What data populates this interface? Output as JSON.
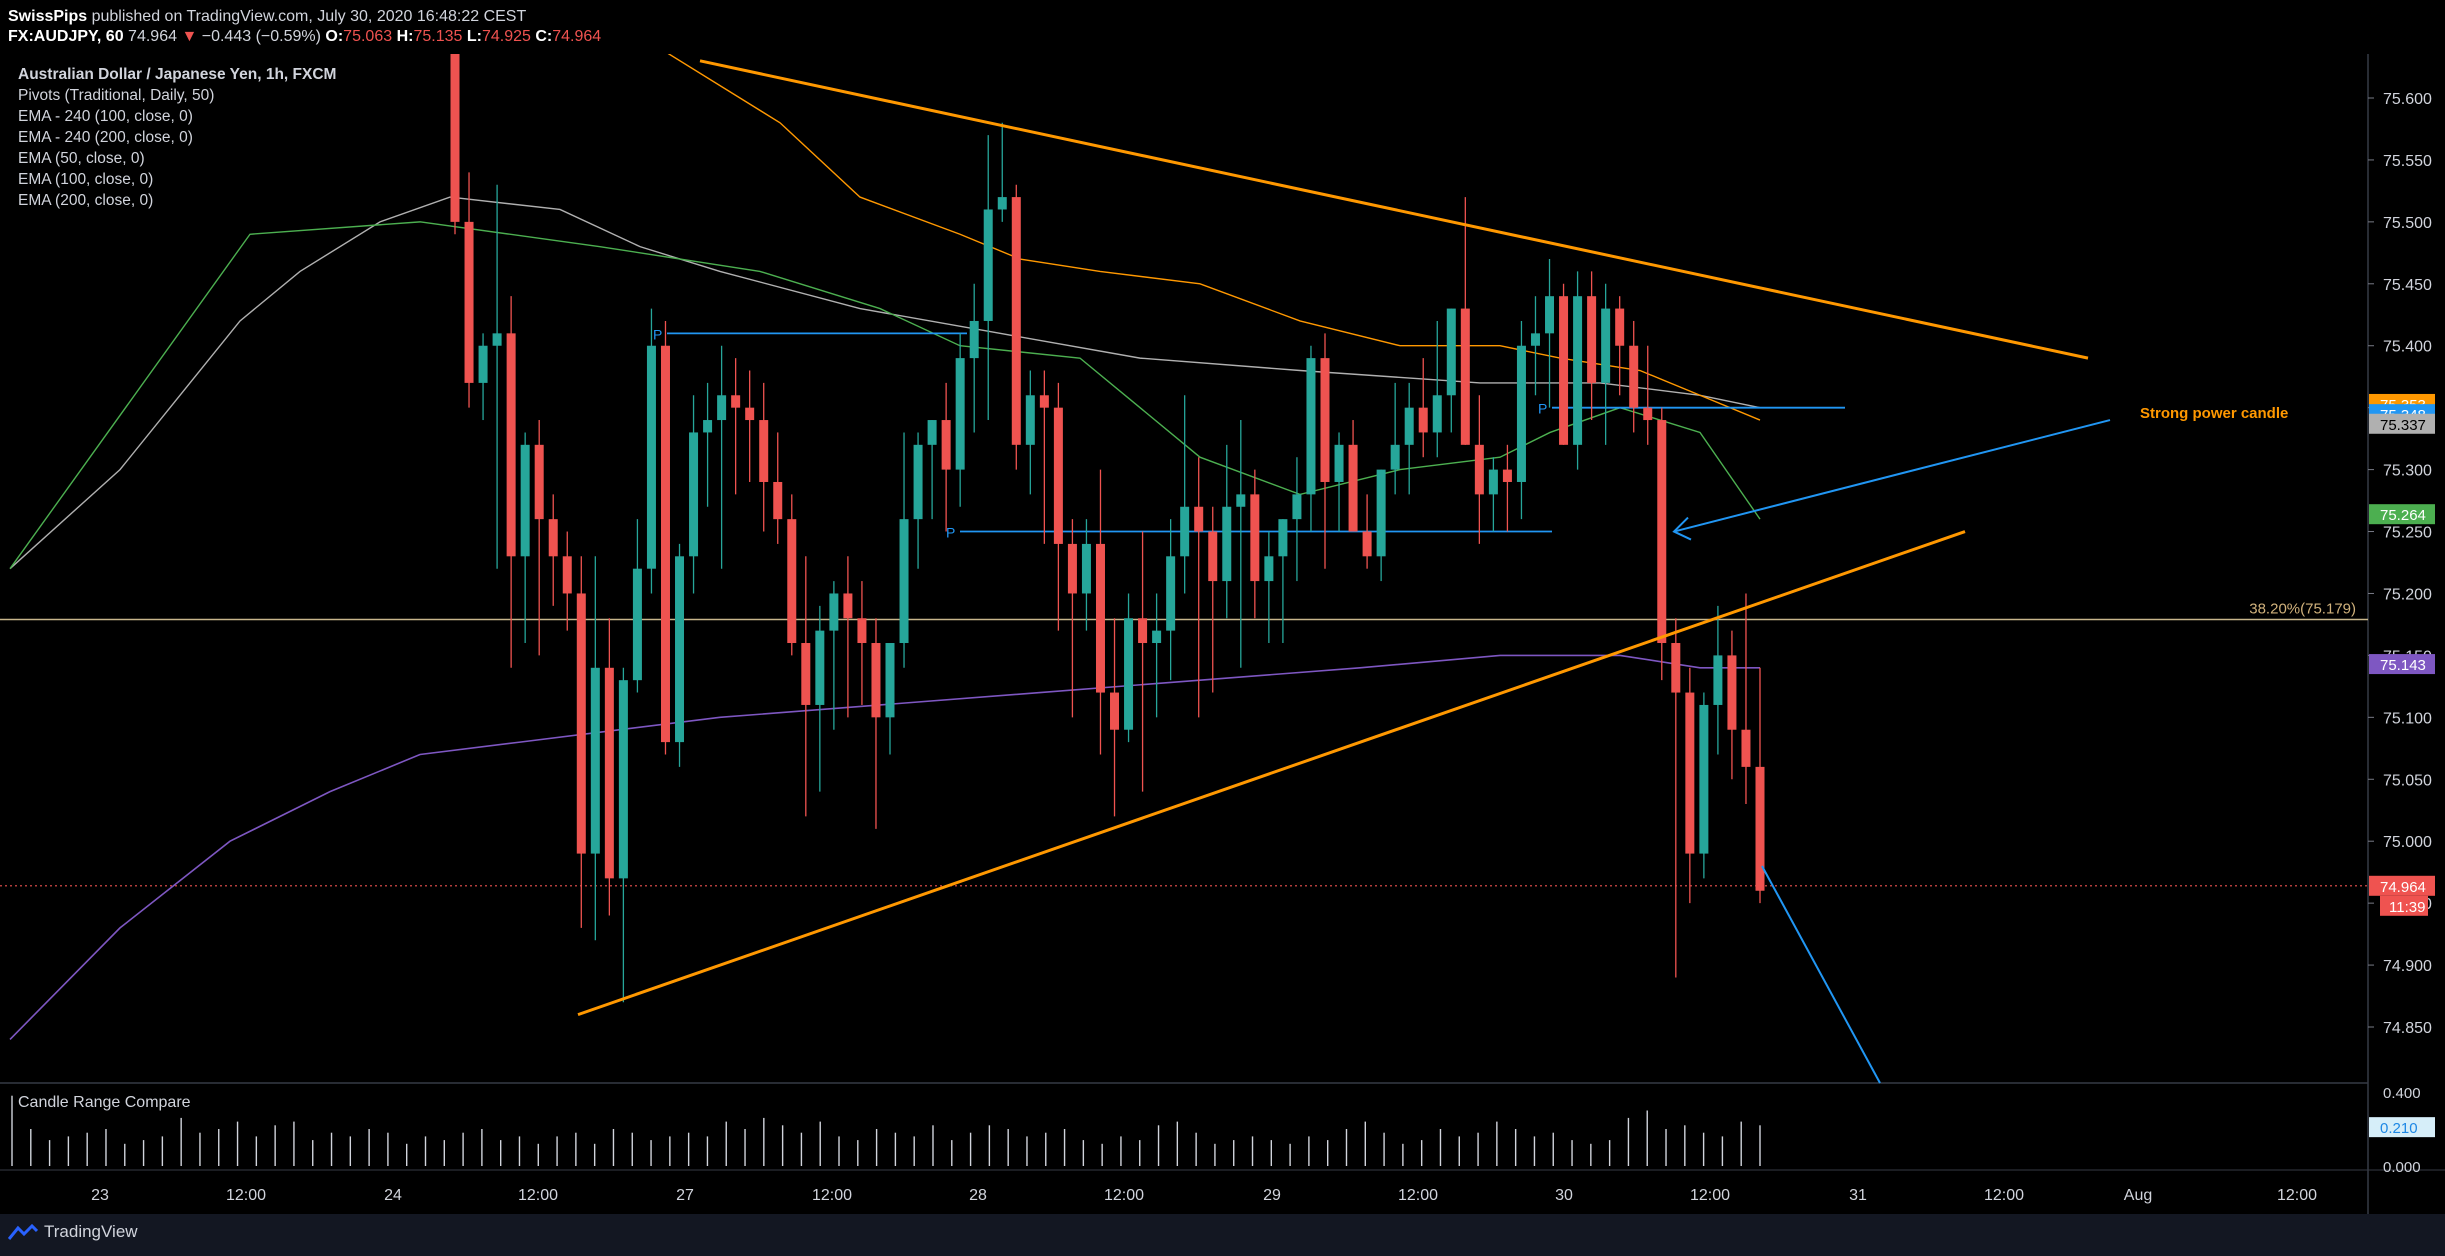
{
  "header": {
    "publisher": "SwissPips",
    "published_text": " published on TradingView.com, July 30, 2020 16:48:22 CEST",
    "symbol": "FX:AUDJPY, 60",
    "last": "74.964",
    "change": "−0.443 (−0.59%)",
    "o_label": "O:",
    "o_value": "75.063",
    "h_label": "H:",
    "h_value": "75.135",
    "l_label": "L:",
    "l_value": "74.925",
    "c_label": "C:",
    "c_value": "74.964"
  },
  "indicators": [
    "Australian Dollar / Japanese Yen, 1h, FXCM",
    "Pivots (Traditional, Daily, 50)",
    "EMA - 240 (100, close, 0)",
    "EMA - 240 (200, close, 0)",
    "EMA (50, close, 0)",
    "EMA (100, close, 0)",
    "EMA (200, close, 0)"
  ],
  "footer": {
    "brand": "TradingView"
  },
  "colors": {
    "up": "#26a69a",
    "down": "#ef5350",
    "trend": "#ff9800",
    "blue": "#2196f3",
    "ema50": "#4caf50",
    "ema100": "#ff9800",
    "ema200_240": "#7e57c2",
    "ema100_240": "#b0b0b0"
  },
  "chart_data": {
    "type": "candlestick",
    "ylim": [
      74.8,
      75.63
    ],
    "y_ticks": [
      "75.600",
      "75.550",
      "75.500",
      "75.450",
      "75.400",
      "75.350",
      "75.300",
      "75.250",
      "75.200",
      "75.150",
      "75.100",
      "75.050",
      "75.000",
      "74.950",
      "74.900",
      "74.850"
    ],
    "x_ticks": [
      "23",
      "12:00",
      "24",
      "12:00",
      "27",
      "12:00",
      "28",
      "12:00",
      "29",
      "12:00",
      "30",
      "12:00",
      "31",
      "12:00",
      "Aug",
      "12:00"
    ],
    "price_labels": [
      {
        "text": "75.353",
        "value": 75.353,
        "color": "#ff9800"
      },
      {
        "text": "75.348",
        "value": 75.348,
        "color": "#2196f3"
      },
      {
        "text": "75.337",
        "value": 75.337,
        "color": "#b0b0b0"
      },
      {
        "text": "75.264",
        "value": 75.264,
        "color": "#4caf50"
      },
      {
        "text": "75.143",
        "value": 75.143,
        "color": "#7e57c2"
      },
      {
        "text": "74.964",
        "value": 74.964,
        "color": "#ef5350"
      }
    ],
    "countdown": "11:39",
    "fib_label": "38.20%(75.179)",
    "fib_value": 75.179,
    "annotation": "Strong power candle",
    "pivot_label": "P",
    "candles": [
      [
        75.72,
        75.74,
        75.49,
        75.5
      ],
      [
        75.5,
        75.54,
        75.35,
        75.37
      ],
      [
        75.37,
        75.41,
        75.34,
        75.4
      ],
      [
        75.4,
        75.53,
        75.22,
        75.41
      ],
      [
        75.41,
        75.44,
        75.14,
        75.23
      ],
      [
        75.23,
        75.33,
        75.16,
        75.32
      ],
      [
        75.32,
        75.34,
        75.15,
        75.26
      ],
      [
        75.26,
        75.28,
        75.19,
        75.23
      ],
      [
        75.23,
        75.25,
        75.17,
        75.2
      ],
      [
        75.2,
        75.23,
        74.93,
        74.99
      ],
      [
        74.99,
        75.23,
        74.92,
        75.14
      ],
      [
        75.14,
        75.18,
        74.94,
        74.97
      ],
      [
        74.97,
        75.14,
        74.87,
        75.13
      ],
      [
        75.13,
        75.26,
        75.12,
        75.22
      ],
      [
        75.22,
        75.43,
        75.2,
        75.4
      ],
      [
        75.4,
        75.42,
        75.07,
        75.08
      ],
      [
        75.08,
        75.24,
        75.06,
        75.23
      ],
      [
        75.23,
        75.36,
        75.2,
        75.33
      ],
      [
        75.33,
        75.37,
        75.27,
        75.34
      ],
      [
        75.34,
        75.4,
        75.22,
        75.36
      ],
      [
        75.36,
        75.39,
        75.28,
        75.35
      ],
      [
        75.35,
        75.38,
        75.29,
        75.34
      ],
      [
        75.34,
        75.37,
        75.25,
        75.29
      ],
      [
        75.29,
        75.33,
        75.24,
        75.26
      ],
      [
        75.26,
        75.28,
        75.15,
        75.16
      ],
      [
        75.16,
        75.23,
        75.02,
        75.11
      ],
      [
        75.11,
        75.19,
        75.04,
        75.17
      ],
      [
        75.17,
        75.21,
        75.09,
        75.2
      ],
      [
        75.2,
        75.23,
        75.1,
        75.18
      ],
      [
        75.18,
        75.21,
        75.11,
        75.16
      ],
      [
        75.16,
        75.18,
        75.01,
        75.1
      ],
      [
        75.1,
        75.16,
        75.07,
        75.16
      ],
      [
        75.16,
        75.33,
        75.14,
        75.26
      ],
      [
        75.26,
        75.33,
        75.22,
        75.32
      ],
      [
        75.32,
        75.34,
        75.26,
        75.34
      ],
      [
        75.34,
        75.37,
        75.25,
        75.3
      ],
      [
        75.3,
        75.41,
        75.27,
        75.39
      ],
      [
        75.39,
        75.45,
        75.33,
        75.42
      ],
      [
        75.42,
        75.57,
        75.34,
        75.51
      ],
      [
        75.51,
        75.58,
        75.5,
        75.52
      ],
      [
        75.52,
        75.53,
        75.3,
        75.32
      ],
      [
        75.32,
        75.38,
        75.28,
        75.36
      ],
      [
        75.36,
        75.38,
        75.24,
        75.35
      ],
      [
        75.35,
        75.37,
        75.17,
        75.24
      ],
      [
        75.24,
        75.26,
        75.1,
        75.2
      ],
      [
        75.2,
        75.26,
        75.17,
        75.24
      ],
      [
        75.24,
        75.3,
        75.07,
        75.12
      ],
      [
        75.12,
        75.18,
        75.02,
        75.09
      ],
      [
        75.09,
        75.2,
        75.08,
        75.18
      ],
      [
        75.18,
        75.25,
        75.04,
        75.16
      ],
      [
        75.16,
        75.2,
        75.1,
        75.17
      ],
      [
        75.17,
        75.26,
        75.13,
        75.23
      ],
      [
        75.23,
        75.36,
        75.2,
        75.27
      ],
      [
        75.27,
        75.31,
        75.1,
        75.25
      ],
      [
        75.25,
        75.27,
        75.12,
        75.21
      ],
      [
        75.21,
        75.32,
        75.18,
        75.27
      ],
      [
        75.27,
        75.34,
        75.14,
        75.28
      ],
      [
        75.28,
        75.3,
        75.18,
        75.21
      ],
      [
        75.21,
        75.25,
        75.16,
        75.23
      ],
      [
        75.23,
        75.26,
        75.16,
        75.26
      ],
      [
        75.26,
        75.31,
        75.21,
        75.28
      ],
      [
        75.28,
        75.4,
        75.25,
        75.39
      ],
      [
        75.39,
        75.41,
        75.22,
        75.29
      ],
      [
        75.29,
        75.33,
        75.25,
        75.32
      ],
      [
        75.32,
        75.34,
        75.25,
        75.25
      ],
      [
        75.25,
        75.28,
        75.22,
        75.23
      ],
      [
        75.23,
        75.3,
        75.21,
        75.3
      ],
      [
        75.3,
        75.37,
        75.28,
        75.32
      ],
      [
        75.32,
        75.37,
        75.28,
        75.35
      ],
      [
        75.35,
        75.39,
        75.31,
        75.33
      ],
      [
        75.33,
        75.42,
        75.31,
        75.36
      ],
      [
        75.36,
        75.43,
        75.33,
        75.43
      ],
      [
        75.43,
        75.52,
        75.32,
        75.32
      ],
      [
        75.32,
        75.36,
        75.24,
        75.28
      ],
      [
        75.28,
        75.31,
        75.25,
        75.3
      ],
      [
        75.3,
        75.32,
        75.25,
        75.29
      ],
      [
        75.29,
        75.42,
        75.26,
        75.4
      ],
      [
        75.4,
        75.44,
        75.36,
        75.41
      ],
      [
        75.41,
        75.47,
        75.35,
        75.44
      ],
      [
        75.44,
        75.45,
        75.32,
        75.32
      ],
      [
        75.32,
        75.46,
        75.3,
        75.44
      ],
      [
        75.44,
        75.46,
        75.34,
        75.37
      ],
      [
        75.37,
        75.45,
        75.32,
        75.43
      ],
      [
        75.43,
        75.44,
        75.36,
        75.4
      ],
      [
        75.4,
        75.42,
        75.33,
        75.35
      ],
      [
        75.35,
        75.4,
        75.32,
        75.34
      ],
      [
        75.34,
        75.35,
        75.13,
        75.16
      ],
      [
        75.16,
        75.18,
        74.89,
        75.12
      ],
      [
        75.12,
        75.14,
        74.95,
        74.99
      ],
      [
        74.99,
        75.12,
        74.97,
        75.11
      ],
      [
        75.11,
        75.19,
        75.07,
        75.15
      ],
      [
        75.15,
        75.17,
        75.05,
        75.09
      ],
      [
        75.09,
        75.2,
        75.03,
        75.06
      ],
      [
        75.06,
        75.14,
        74.95,
        74.96
      ]
    ],
    "ema50": [
      [
        10,
        75.22
      ],
      [
        250,
        75.49
      ],
      [
        420,
        75.5
      ],
      [
        600,
        75.48
      ],
      [
        760,
        75.46
      ],
      [
        880,
        75.43
      ],
      [
        960,
        75.4
      ],
      [
        1080,
        75.39
      ],
      [
        1200,
        75.31
      ],
      [
        1300,
        75.28
      ],
      [
        1400,
        75.3
      ],
      [
        1500,
        75.31
      ],
      [
        1550,
        75.33
      ],
      [
        1620,
        75.35
      ],
      [
        1700,
        75.33
      ],
      [
        1760,
        75.26
      ]
    ],
    "ema100": [
      [
        640,
        75.65
      ],
      [
        780,
        75.58
      ],
      [
        860,
        75.52
      ],
      [
        960,
        75.49
      ],
      [
        1020,
        75.47
      ],
      [
        1100,
        75.46
      ],
      [
        1200,
        75.45
      ],
      [
        1300,
        75.42
      ],
      [
        1400,
        75.4
      ],
      [
        1500,
        75.4
      ],
      [
        1560,
        75.39
      ],
      [
        1640,
        75.38
      ],
      [
        1700,
        75.36
      ],
      [
        1760,
        75.34
      ]
    ],
    "ema100_240": [
      [
        10,
        75.22
      ],
      [
        120,
        75.3
      ],
      [
        240,
        75.42
      ],
      [
        300,
        75.46
      ],
      [
        380,
        75.5
      ],
      [
        450,
        75.52
      ],
      [
        560,
        75.51
      ],
      [
        640,
        75.48
      ],
      [
        720,
        75.46
      ],
      [
        860,
        75.43
      ],
      [
        1000,
        75.41
      ],
      [
        1140,
        75.39
      ],
      [
        1300,
        75.38
      ],
      [
        1480,
        75.37
      ],
      [
        1600,
        75.37
      ],
      [
        1700,
        75.36
      ],
      [
        1760,
        75.35
      ]
    ],
    "ema200_240": [
      [
        10,
        74.84
      ],
      [
        120,
        74.93
      ],
      [
        230,
        75.0
      ],
      [
        330,
        75.04
      ],
      [
        420,
        75.07
      ],
      [
        520,
        75.08
      ],
      [
        620,
        75.09
      ],
      [
        720,
        75.1
      ],
      [
        880,
        75.11
      ],
      [
        1040,
        75.12
      ],
      [
        1200,
        75.13
      ],
      [
        1360,
        75.14
      ],
      [
        1500,
        75.15
      ],
      [
        1620,
        75.15
      ],
      [
        1700,
        75.14
      ],
      [
        1760,
        75.14
      ]
    ],
    "trend_upper": [
      [
        700,
        75.63
      ],
      [
        2088,
        75.39
      ]
    ],
    "trend_lower": [
      [
        578,
        74.86
      ],
      [
        1965,
        75.25
      ]
    ],
    "blue_arrow_line": [
      [
        2110,
        75.34
      ],
      [
        1674,
        75.25
      ]
    ],
    "blue_projection": [
      [
        1762,
        74.98
      ],
      [
        1880,
        74.75
      ]
    ],
    "pivot_lines": [
      [
        [
          667,
          75.41
        ],
        [
          967,
          75.41
        ]
      ],
      [
        [
          960,
          75.25
        ],
        [
          1552,
          75.25
        ]
      ],
      [
        [
          1552,
          75.35
        ],
        [
          1845,
          75.35
        ]
      ]
    ],
    "vol_axis": [
      "0.400",
      "0.210",
      "0.000"
    ],
    "volume": [
      0.38,
      0.2,
      0.14,
      0.16,
      0.18,
      0.2,
      0.12,
      0.14,
      0.16,
      0.26,
      0.18,
      0.2,
      0.24,
      0.16,
      0.22,
      0.24,
      0.14,
      0.18,
      0.16,
      0.2,
      0.18,
      0.12,
      0.16,
      0.14,
      0.18,
      0.2,
      0.14,
      0.16,
      0.12,
      0.16,
      0.18,
      0.12,
      0.2,
      0.18,
      0.14,
      0.16,
      0.18,
      0.16,
      0.24,
      0.2,
      0.26,
      0.22,
      0.18,
      0.24,
      0.16,
      0.14,
      0.2,
      0.18,
      0.16,
      0.22,
      0.14,
      0.18,
      0.22,
      0.2,
      0.16,
      0.18,
      0.2,
      0.14,
      0.12,
      0.16,
      0.14,
      0.22,
      0.24,
      0.18,
      0.12,
      0.14,
      0.16,
      0.14,
      0.12,
      0.16,
      0.14,
      0.2,
      0.24,
      0.18,
      0.12,
      0.14,
      0.2,
      0.16,
      0.18,
      0.24,
      0.2,
      0.16,
      0.18,
      0.14,
      0.12,
      0.14,
      0.26,
      0.3,
      0.2,
      0.22,
      0.18,
      0.16,
      0.24,
      0.22
    ]
  }
}
